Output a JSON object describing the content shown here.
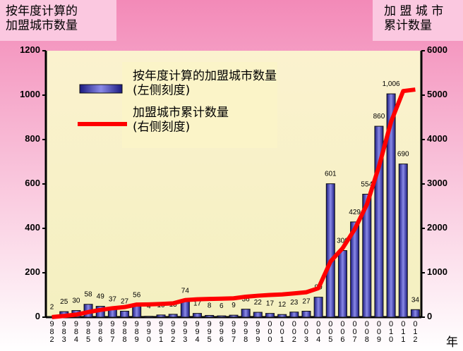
{
  "chart_data": {
    "type": "bar",
    "title": null,
    "y_label": "按年度计算的\n加盟城市数量",
    "y2_label": "加 盟 城 市\n累计数量",
    "x_label": "年",
    "categories": [
      "982",
      "983",
      "984",
      "985",
      "986",
      "987",
      "988",
      "989",
      "990",
      "991",
      "992",
      "993",
      "994",
      "995",
      "996",
      "997",
      "998",
      "999",
      "000",
      "001",
      "002",
      "003",
      "004",
      "005",
      "006",
      "007",
      "008",
      "009",
      "010",
      "011",
      "012"
    ],
    "series": [
      {
        "name": "按年度计算的加盟城市数量\n(左侧刻度)",
        "type": "bar",
        "color": "#3333aa",
        "values": [
          2,
          25,
          30,
          58,
          49,
          37,
          27,
          56,
          4,
          10,
          13,
          74,
          17,
          8,
          6,
          9,
          36,
          22,
          17,
          12,
          23,
          27,
          90,
          601,
          300,
          429,
          554,
          860,
          1006,
          690,
          34
        ],
        "value_labels": [
          "2",
          "25",
          "30",
          "58",
          "49",
          "37",
          "27",
          "56",
          "4",
          "10",
          "13",
          "74",
          "17",
          "8",
          "6",
          "9",
          "36",
          "22",
          "17",
          "12",
          "23",
          "27",
          "90",
          "601",
          "300",
          "429",
          "554",
          "860",
          "1,006",
          "690",
          "34"
        ]
      },
      {
        "name": "加盟城市累计数量\n(右侧刻度)",
        "type": "line",
        "axis": "y2",
        "color": "#ff0000",
        "values": [
          2,
          27,
          57,
          115,
          164,
          201,
          228,
          284,
          288,
          298,
          311,
          385,
          402,
          410,
          416,
          425,
          461,
          483,
          500,
          512,
          535,
          562,
          652,
          1253,
          1553,
          1982,
          2536,
          3396,
          4402,
          5092,
          5126
        ]
      }
    ],
    "ylim": [
      0,
      1200
    ],
    "yticks": [
      0,
      200,
      400,
      600,
      800,
      1000,
      1200
    ],
    "y2lim": [
      0,
      6000
    ],
    "y2ticks": [
      0,
      1000,
      2000,
      3000,
      4000,
      5000,
      6000
    ]
  }
}
